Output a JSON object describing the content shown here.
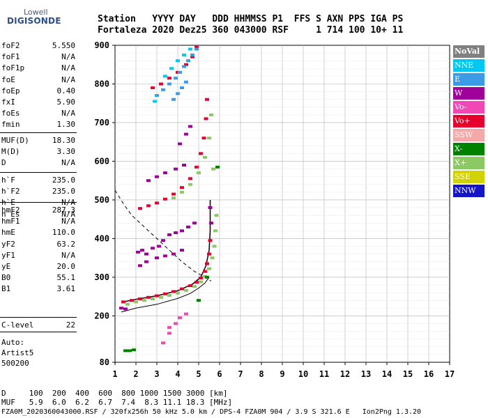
{
  "logo": {
    "line1": "Lowell",
    "line2": "DIGISONDE"
  },
  "header": {
    "line1": "Station   YYYY DAY   DDD HHMMSS P1  FFS S AXN PPS IGA PS",
    "line2": "Fortaleza 2020 Dez25 360 043000 RSF     1 714 100 10+ 11"
  },
  "params": {
    "group1": [
      {
        "name": "foF2",
        "value": "5.550"
      },
      {
        "name": "foF1",
        "value": "N/A"
      },
      {
        "name": "foF1p",
        "value": "N/A"
      },
      {
        "name": "foE",
        "value": "N/A"
      },
      {
        "name": "foEp",
        "value": "0.40"
      },
      {
        "name": "fxI",
        "value": "5.90"
      },
      {
        "name": "foEs",
        "value": "N/A"
      },
      {
        "name": "fmin",
        "value": "1.30"
      }
    ],
    "group2": [
      {
        "name": "MUF(D)",
        "value": "18.30"
      },
      {
        "name": "M(D)",
        "value": "3.30"
      },
      {
        "name": "D",
        "value": "N/A"
      }
    ],
    "group3": [
      {
        "name": "h`F",
        "value": "235.0"
      },
      {
        "name": "h`F2",
        "value": "235.0"
      },
      {
        "name": "h`E",
        "value": "N/A"
      },
      {
        "name": "h`Es",
        "value": "N/A"
      }
    ],
    "group4": [
      {
        "name": "hmF2",
        "value": "287.3"
      },
      {
        "name": "hmF1",
        "value": "N/A"
      },
      {
        "name": "hmE",
        "value": "110.0"
      },
      {
        "name": "yF2",
        "value": "63.2"
      },
      {
        "name": "yF1",
        "value": "N/A"
      },
      {
        "name": "yE",
        "value": "20.0"
      },
      {
        "name": "B0",
        "value": "55.1"
      },
      {
        "name": "B1",
        "value": "3.61"
      }
    ],
    "group5": [
      {
        "name": "C-level",
        "value": "22"
      }
    ]
  },
  "autoscale": {
    "line1": "Auto:",
    "line2": "Artist5",
    "line3": "500200"
  },
  "legend": [
    {
      "label": "NoVal",
      "color": "#808080"
    },
    {
      "label": "NNE",
      "color": "#00c8f0"
    },
    {
      "label": "E",
      "color": "#3c9be6"
    },
    {
      "label": "W",
      "color": "#a0009a"
    },
    {
      "label": "Vo-",
      "color": "#f048b4"
    },
    {
      "label": "Vo+",
      "color": "#e6002d"
    },
    {
      "label": "SSW",
      "color": "#f4a8a8"
    },
    {
      "label": "X-",
      "color": "#008200"
    },
    {
      "label": "X+",
      "color": "#8cc864"
    },
    {
      "label": "SSE",
      "color": "#d2d200"
    },
    {
      "label": "NNW",
      "color": "#1414c8"
    }
  ],
  "footer": {
    "line1": "D     100  200  400  600  800 1000 1500 3000 [km]",
    "line2": "MUF   5.9  6.0  6.2  6.7  7.4  8.3 11.1 18.3 [MHz]",
    "line3": "FZA0M_2020360043000.RSF / 320fx256h 50 kHz 5.0 km / DPS-4 FZA0M 904 / 3.9 S 321.6 E   Ion2Png 1.3.20"
  },
  "chart_data": {
    "type": "scatter",
    "xlim": [
      1,
      17
    ],
    "ylim": [
      80,
      900
    ],
    "xticks": [
      1,
      2,
      3,
      4,
      5,
      6,
      7,
      8,
      9,
      10,
      11,
      12,
      13,
      14,
      15,
      16,
      17
    ],
    "yticks": [
      80,
      200,
      300,
      400,
      500,
      600,
      700,
      800,
      900
    ],
    "grid": true,
    "xlabel": "",
    "ylabel": "",
    "series": [
      {
        "color": "#e6002d",
        "points": [
          [
            1.4,
            236
          ],
          [
            1.8,
            240
          ],
          [
            2.2,
            244
          ],
          [
            2.6,
            248
          ],
          [
            3.0,
            252
          ],
          [
            3.4,
            257
          ],
          [
            3.8,
            263
          ],
          [
            4.2,
            270
          ],
          [
            4.6,
            278
          ],
          [
            4.9,
            287
          ],
          [
            5.1,
            298
          ],
          [
            5.3,
            315
          ],
          [
            5.4,
            335
          ],
          [
            5.5,
            360
          ],
          [
            5.55,
            395
          ],
          [
            2.2,
            478
          ],
          [
            2.6,
            485
          ],
          [
            3.0,
            492
          ],
          [
            3.4,
            502
          ],
          [
            3.8,
            515
          ],
          [
            4.2,
            532
          ],
          [
            4.6,
            555
          ],
          [
            4.9,
            585
          ],
          [
            5.1,
            620
          ],
          [
            5.25,
            660
          ],
          [
            5.35,
            710
          ],
          [
            5.4,
            760
          ],
          [
            2.8,
            790
          ],
          [
            3.2,
            800
          ],
          [
            3.6,
            815
          ],
          [
            4.0,
            830
          ],
          [
            4.4,
            850
          ],
          [
            4.7,
            870
          ],
          [
            4.9,
            895
          ]
        ]
      },
      {
        "color": "#8cc864",
        "points": [
          [
            1.6,
            230
          ],
          [
            2.0,
            236
          ],
          [
            2.4,
            240
          ],
          [
            2.8,
            244
          ],
          [
            3.2,
            248
          ],
          [
            3.6,
            253
          ],
          [
            4.0,
            259
          ],
          [
            4.4,
            266
          ],
          [
            4.8,
            276
          ],
          [
            5.1,
            288
          ],
          [
            5.3,
            302
          ],
          [
            5.5,
            322
          ],
          [
            5.65,
            350
          ],
          [
            5.75,
            380
          ],
          [
            5.8,
            420
          ],
          [
            5.85,
            460
          ],
          [
            3.8,
            505
          ],
          [
            4.2,
            520
          ],
          [
            4.6,
            540
          ],
          [
            5.0,
            570
          ],
          [
            5.3,
            610
          ],
          [
            5.5,
            660
          ],
          [
            5.6,
            720
          ],
          [
            5.7,
            580
          ]
        ]
      },
      {
        "color": "#a0009a",
        "points": [
          [
            2.1,
            365
          ],
          [
            2.3,
            370
          ],
          [
            2.5,
            360
          ],
          [
            2.8,
            375
          ],
          [
            3.1,
            380
          ],
          [
            3.3,
            395
          ],
          [
            3.6,
            410
          ],
          [
            3.9,
            415
          ],
          [
            4.2,
            420
          ],
          [
            4.5,
            430
          ],
          [
            4.8,
            440
          ],
          [
            2.2,
            330
          ],
          [
            2.5,
            340
          ],
          [
            3.0,
            350
          ],
          [
            3.4,
            355
          ],
          [
            3.8,
            360
          ],
          [
            4.2,
            370
          ],
          [
            5.6,
            440
          ],
          [
            5.55,
            480
          ],
          [
            2.6,
            550
          ],
          [
            3.0,
            560
          ],
          [
            3.4,
            570
          ],
          [
            3.9,
            580
          ],
          [
            4.3,
            590
          ],
          [
            4.1,
            645
          ],
          [
            4.4,
            670
          ],
          [
            4.6,
            690
          ],
          [
            1.3,
            220
          ],
          [
            1.5,
            218
          ]
        ]
      },
      {
        "color": "#3c9be6",
        "points": [
          [
            3.0,
            770
          ],
          [
            3.3,
            785
          ],
          [
            3.6,
            800
          ],
          [
            3.9,
            815
          ],
          [
            4.1,
            830
          ],
          [
            4.3,
            845
          ],
          [
            4.5,
            860
          ],
          [
            4.7,
            875
          ],
          [
            4.9,
            890
          ],
          [
            3.8,
            760
          ],
          [
            4.0,
            775
          ],
          [
            4.2,
            790
          ],
          [
            4.4,
            805
          ]
        ]
      },
      {
        "color": "#00c8f0",
        "points": [
          [
            3.4,
            820
          ],
          [
            3.7,
            840
          ],
          [
            4.0,
            860
          ],
          [
            4.3,
            875
          ],
          [
            4.6,
            890
          ],
          [
            2.9,
            755
          ]
        ]
      },
      {
        "color": "#008200",
        "points": [
          [
            1.5,
            110
          ],
          [
            1.7,
            110
          ],
          [
            1.9,
            112
          ],
          [
            5.0,
            240
          ],
          [
            5.4,
            300
          ],
          [
            5.9,
            585
          ]
        ]
      },
      {
        "color": "#f048b4",
        "points": [
          [
            3.6,
            170
          ],
          [
            3.9,
            180
          ],
          [
            4.1,
            195
          ],
          [
            4.4,
            205
          ],
          [
            3.3,
            130
          ],
          [
            3.6,
            155
          ]
        ]
      }
    ],
    "curves": [
      {
        "style": "solid",
        "points": [
          [
            1.3,
            210
          ],
          [
            2.0,
            220
          ],
          [
            3.0,
            230
          ],
          [
            4.0,
            245
          ],
          [
            4.6,
            258
          ],
          [
            5.0,
            272
          ],
          [
            5.3,
            285
          ],
          [
            5.5,
            300
          ]
        ]
      },
      {
        "style": "dashed",
        "points": [
          [
            1.0,
            525
          ],
          [
            1.4,
            490
          ],
          [
            1.8,
            460
          ],
          [
            2.4,
            430
          ],
          [
            3.0,
            400
          ],
          [
            3.6,
            370
          ],
          [
            4.2,
            340
          ],
          [
            4.8,
            315
          ],
          [
            5.3,
            300
          ],
          [
            5.6,
            290
          ]
        ]
      },
      {
        "style": "solid-dark",
        "points": [
          [
            1.4,
            236
          ],
          [
            2.0,
            243
          ],
          [
            3.0,
            252
          ],
          [
            4.0,
            265
          ],
          [
            4.7,
            282
          ],
          [
            5.1,
            300
          ],
          [
            5.35,
            330
          ],
          [
            5.5,
            370
          ],
          [
            5.55,
            420
          ],
          [
            5.55,
            500
          ]
        ]
      }
    ]
  }
}
